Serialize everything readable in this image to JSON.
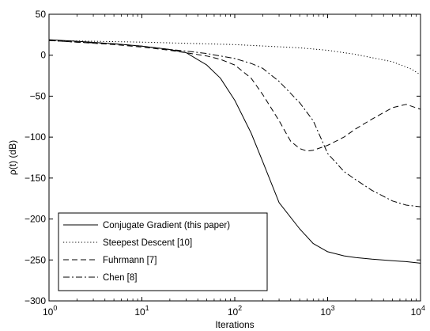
{
  "chart_data": {
    "type": "line",
    "title": "",
    "xlabel": "Iterations",
    "ylabel": "ρ(t) (dB)",
    "x_scale": "log",
    "xlim": [
      1,
      10000
    ],
    "ylim": [
      -300,
      50
    ],
    "grid": false,
    "legend_position": "bottom-left",
    "x_ticks": [
      {
        "value": 1,
        "base": "10",
        "exp": "0"
      },
      {
        "value": 10,
        "base": "10",
        "exp": "1"
      },
      {
        "value": 100,
        "base": "10",
        "exp": "2"
      },
      {
        "value": 1000,
        "base": "10",
        "exp": "3"
      },
      {
        "value": 10000,
        "base": "10",
        "exp": "4"
      }
    ],
    "y_ticks": [
      {
        "value": 50,
        "label": "50"
      },
      {
        "value": 0,
        "label": "0"
      },
      {
        "value": -50,
        "label": "−50"
      },
      {
        "value": -100,
        "label": "−100"
      },
      {
        "value": -150,
        "label": "−150"
      },
      {
        "value": -200,
        "label": "−200"
      },
      {
        "value": -250,
        "label": "−250"
      },
      {
        "value": -300,
        "label": "−300"
      }
    ],
    "series": [
      {
        "name": "Conjugate Gradient (this paper)",
        "style": "solid",
        "x": [
          1,
          2,
          5,
          10,
          20,
          30,
          50,
          70,
          100,
          150,
          200,
          300,
          500,
          700,
          1000,
          1500,
          2000,
          3000,
          5000,
          7000,
          10000
        ],
        "y": [
          19,
          17,
          14,
          11,
          7,
          3,
          -12,
          -28,
          -55,
          -95,
          -130,
          -180,
          -212,
          -230,
          -240,
          -245,
          -247,
          -249,
          -251,
          -252,
          -254
        ]
      },
      {
        "name": "Steepest Descent [10]",
        "style": "dotted",
        "x": [
          1,
          10,
          100,
          500,
          1000,
          2000,
          5000,
          8000,
          10000
        ],
        "y": [
          18,
          16,
          13,
          9,
          6,
          1,
          -8,
          -17,
          -24
        ]
      },
      {
        "name": "Fuhrmann [7]",
        "style": "dashed",
        "x": [
          1,
          2,
          5,
          10,
          20,
          30,
          50,
          70,
          100,
          150,
          200,
          300,
          400,
          500,
          600,
          700,
          1000,
          1500,
          2000,
          3000,
          5000,
          7000,
          10000
        ],
        "y": [
          18,
          16,
          13,
          10,
          6,
          3,
          -1,
          -5,
          -12,
          -28,
          -48,
          -80,
          -105,
          -114,
          -117,
          -116,
          -110,
          -100,
          -90,
          -78,
          -64,
          -60,
          -66
        ]
      },
      {
        "name": "Chen [8]",
        "style": "dashdot",
        "x": [
          1,
          2,
          5,
          10,
          20,
          30,
          50,
          70,
          100,
          150,
          200,
          300,
          500,
          700,
          1000,
          1500,
          2000,
          3000,
          5000,
          7000,
          10000
        ],
        "y": [
          18,
          16,
          14,
          11,
          7,
          5,
          2,
          -1,
          -4,
          -10,
          -16,
          -32,
          -58,
          -80,
          -120,
          -142,
          -152,
          -165,
          -178,
          -183,
          -185
        ]
      }
    ]
  }
}
